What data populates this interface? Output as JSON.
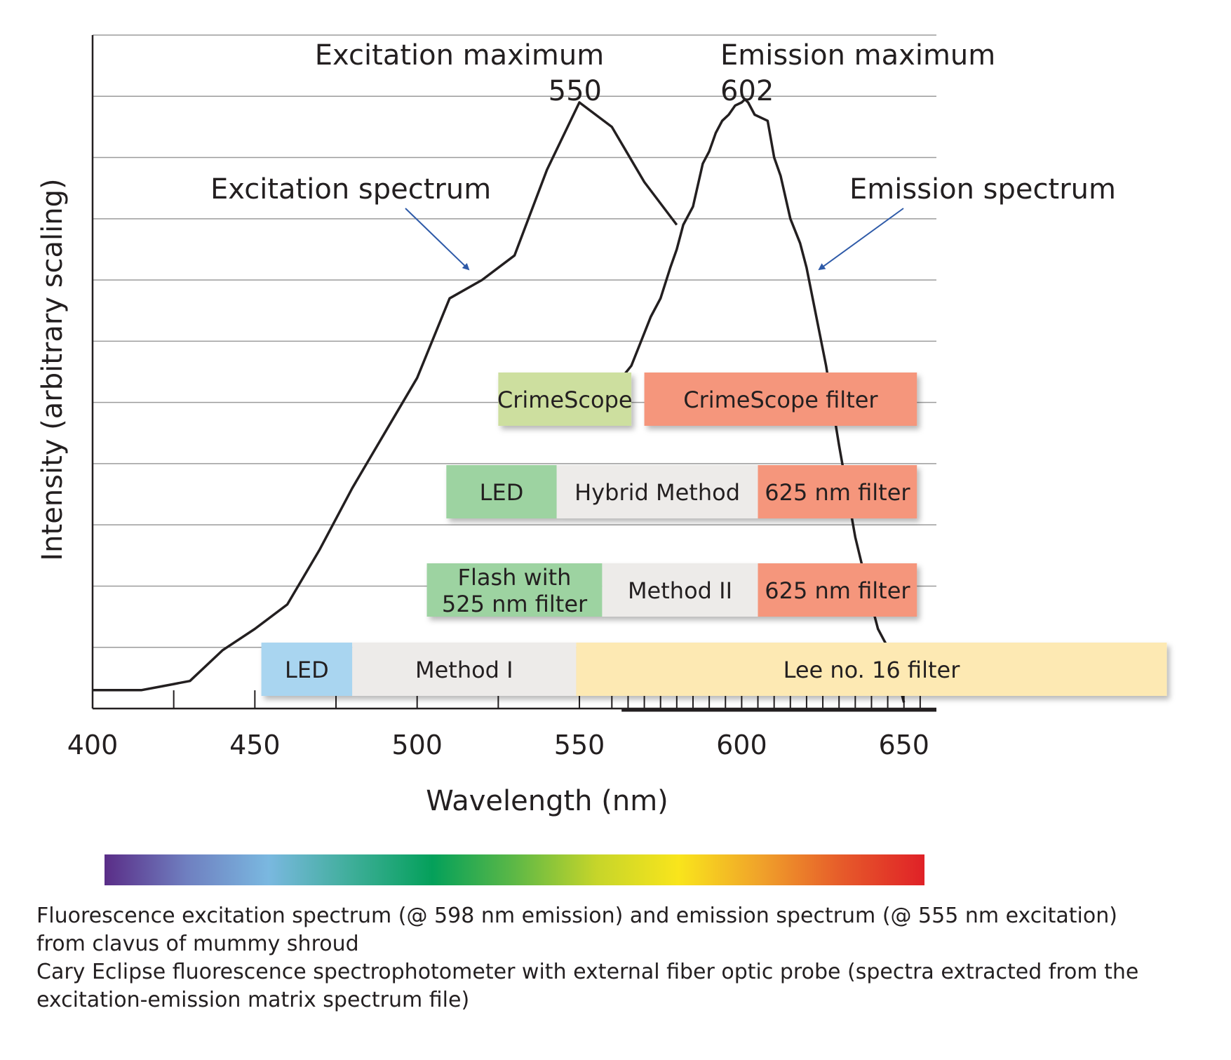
{
  "chart_data": {
    "type": "line",
    "xlabel": "Wavelength (nm)",
    "ylabel": "Intensity (arbitrary scaling)",
    "xlim": [
      400,
      660
    ],
    "ylim": [
      0,
      11
    ],
    "x_ticks": [
      400,
      450,
      500,
      550,
      600,
      650
    ],
    "grid": true,
    "series": [
      {
        "name": "Excitation spectrum",
        "x": [
          400,
          415,
          420,
          425,
          430,
          440,
          450,
          460,
          470,
          480,
          490,
          500,
          510,
          520,
          530,
          540,
          550,
          560,
          570,
          580
        ],
        "y": [
          0.3,
          0.3,
          0.35,
          0.4,
          0.45,
          0.95,
          1.3,
          1.7,
          2.6,
          3.6,
          4.5,
          5.4,
          6.7,
          7.0,
          7.4,
          8.8,
          9.9,
          9.5,
          8.6,
          7.9
        ]
      },
      {
        "name": "Emission spectrum",
        "x": [
          563,
          566,
          569,
          572,
          575,
          578,
          580,
          582,
          585,
          588,
          590,
          592,
          594,
          596,
          598,
          600,
          601,
          602,
          604,
          606,
          608,
          610,
          612,
          615,
          618,
          620,
          623,
          626,
          630,
          635,
          640,
          642,
          645,
          648,
          650
        ],
        "y": [
          5.4,
          5.6,
          6.0,
          6.4,
          6.7,
          7.2,
          7.5,
          7.9,
          8.2,
          8.9,
          9.1,
          9.4,
          9.6,
          9.7,
          9.85,
          9.9,
          9.95,
          9.9,
          9.7,
          9.65,
          9.6,
          9.0,
          8.7,
          8.0,
          7.6,
          7.2,
          6.4,
          5.6,
          4.3,
          2.8,
          1.7,
          1.3,
          1.0,
          0.5,
          0.1
        ]
      }
    ],
    "annotations": {
      "excitation_max_label": "Excitation maximum",
      "excitation_max_value": "550",
      "emission_max_label": "Emission maximum",
      "emission_max_value": "602",
      "excitation_curve_label": "Excitation spectrum",
      "emission_curve_label": "Emission spectrum"
    },
    "band_rows": [
      {
        "segments": [
          {
            "label": "CrimeScope",
            "start": 525,
            "end": 566,
            "color": "#cddf9f"
          },
          {
            "label": "CrimeScope filter",
            "start": 570,
            "end": 654,
            "color": "#f5967b"
          }
        ]
      },
      {
        "segments": [
          {
            "label": "LED",
            "start": 509,
            "end": 543,
            "color": "#9dd3a1"
          },
          {
            "label": "Hybrid Method",
            "start": 543,
            "end": 605,
            "color": "#edebe9"
          },
          {
            "label": "625 nm filter",
            "start": 605,
            "end": 654,
            "color": "#f5967b"
          }
        ]
      },
      {
        "segments": [
          {
            "label": "Flash with\n525 nm filter",
            "start": 503,
            "end": 557,
            "color": "#9dd3a1"
          },
          {
            "label": "Method II",
            "start": 557,
            "end": 605,
            "color": "#edebe9"
          },
          {
            "label": "625 nm filter",
            "start": 605,
            "end": 654,
            "color": "#f5967b"
          }
        ]
      },
      {
        "segments": [
          {
            "label": "LED",
            "start": 452,
            "end": 480,
            "color": "#a9d5f0"
          },
          {
            "label": "Method I",
            "start": 480,
            "end": 549,
            "color": "#edebe9"
          },
          {
            "label": "Lee no. 16 filter",
            "start": 549,
            "end": 731,
            "color": "#fde9b3"
          }
        ]
      }
    ],
    "spectrum_bar_colors": [
      "#5a2d87",
      "#6f7fc0",
      "#7ab8e0",
      "#3fae9a",
      "#04a05a",
      "#5db846",
      "#c6d52a",
      "#f9e51c",
      "#f0a22a",
      "#e65a2a",
      "#e02127"
    ]
  },
  "caption": {
    "line1": "Fluorescence excitation spectrum (@ 598 nm emission) and emission spectrum (@ 555 nm excitation)",
    "line2": "from clavus of mummy shroud",
    "line3": "Cary Eclipse fluorescence spectrophotometer with external fiber optic probe (spectra extracted from the",
    "line4": "excitation-emission matrix spectrum file)"
  }
}
